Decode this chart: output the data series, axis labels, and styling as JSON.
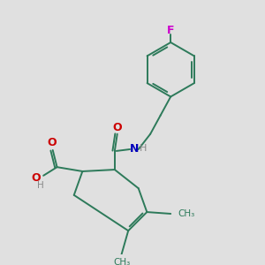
{
  "background_color": "#e0e0e0",
  "bond_color": "#2d7a5a",
  "atom_colors": {
    "O": "#cc0000",
    "N": "#0000bb",
    "F": "#cc00cc",
    "H": "#888888",
    "C": "#2d7a5a"
  },
  "figsize": [
    3.0,
    3.0
  ],
  "dpi": 100
}
